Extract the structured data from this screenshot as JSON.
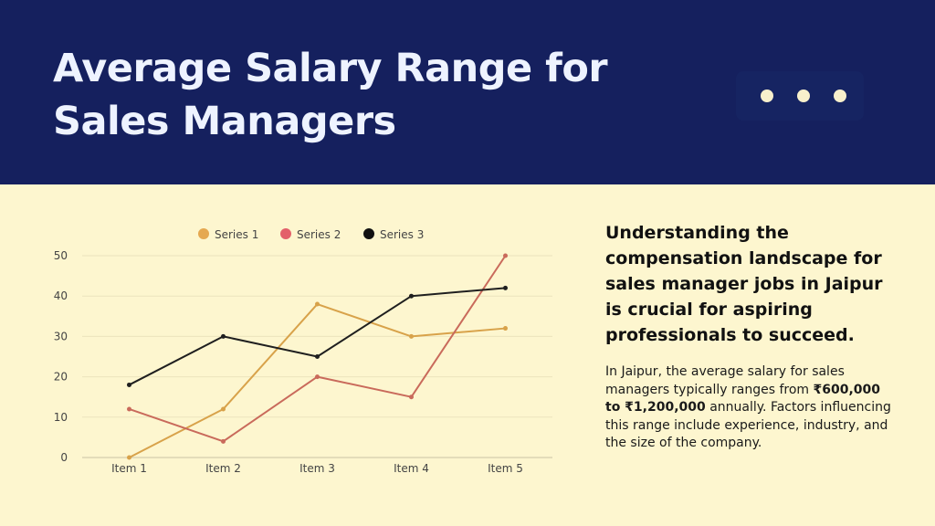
{
  "header": {
    "title_line1": "Average Salary Range for",
    "title_line2": "Sales Managers"
  },
  "side": {
    "heading": "Understanding the compensation landscape for sales manager jobs in Jaipur is crucial for aspiring professionals to succeed.",
    "body_part1": "In Jaipur, the average salary for sales managers typically ranges from ",
    "body_bold": "₹600,000 to ₹1,200,000",
    "body_part2": " annually. Factors influencing this range include experience, industry, and the size of the company."
  },
  "colors": {
    "header_bg": "#15205e",
    "page_bg": "#fdf6cf",
    "series1": "#d8a24a",
    "series2": "#c96a5b",
    "series3": "#1f1f1f"
  },
  "chart_data": {
    "type": "line",
    "categories": [
      "Item 1",
      "Item 2",
      "Item 3",
      "Item 4",
      "Item 5"
    ],
    "series": [
      {
        "name": "Series 1",
        "values": [
          0,
          12,
          38,
          30,
          32
        ],
        "legend_color": "#e5a850"
      },
      {
        "name": "Series 2",
        "values": [
          12,
          4,
          20,
          15,
          50
        ],
        "legend_color": "#e3606a"
      },
      {
        "name": "Series 3",
        "values": [
          18,
          30,
          25,
          40,
          42
        ],
        "legend_color": "#111111"
      }
    ],
    "yticks": [
      0,
      10,
      20,
      30,
      40,
      50
    ],
    "ylim": [
      0,
      50
    ],
    "grid": true,
    "legend_position": "top"
  }
}
